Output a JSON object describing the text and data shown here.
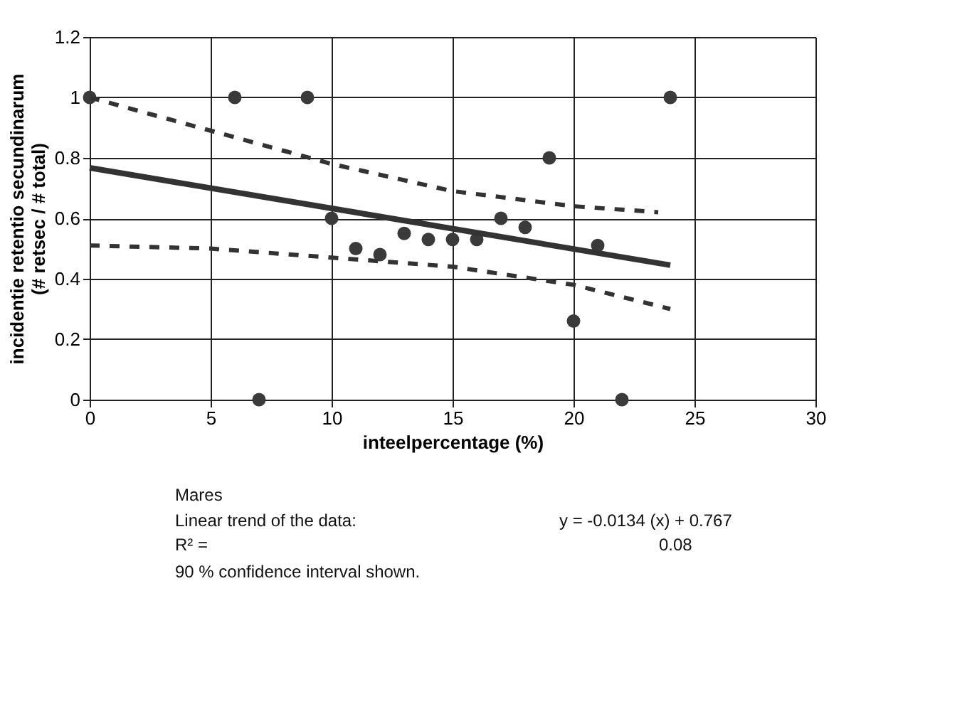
{
  "chart_data": {
    "type": "scatter",
    "xlabel": "inteelpercentage (%)",
    "ylabel": "incidentie retentio secundinarum\n(# retsec / # total)",
    "xlim": [
      0,
      30
    ],
    "xticks": [
      0,
      5,
      10,
      15,
      20,
      25,
      30
    ],
    "ylim": [
      0,
      1.2
    ],
    "yticks": [
      0,
      0.2,
      0.4,
      0.6,
      0.8,
      1,
      1.2
    ],
    "grid": true,
    "series": [
      {
        "marker": "circle",
        "color": "#3a3a3a",
        "x": [
          0,
          6,
          7,
          9,
          10,
          11,
          12,
          13,
          14,
          15,
          16,
          17,
          18,
          19,
          20,
          21,
          22,
          24
        ],
        "values": [
          1,
          1,
          0,
          1,
          0.6,
          0.5,
          0.48,
          0.55,
          0.53,
          0.53,
          0.53,
          0.6,
          0.57,
          0.8,
          0.26,
          0.51,
          0,
          1
        ]
      },
      {
        "type": "line",
        "color": "#333333",
        "line_style": "solid",
        "x": [
          0,
          24
        ],
        "values": [
          0.767,
          0.445
        ]
      },
      {
        "type": "line",
        "color": "#333333",
        "line_style": "dashed",
        "x": [
          0,
          5,
          10,
          15,
          20,
          23.5
        ],
        "values": [
          1.0,
          0.89,
          0.78,
          0.69,
          0.64,
          0.62
        ]
      },
      {
        "type": "line",
        "color": "#333333",
        "line_style": "dashed",
        "x": [
          0,
          5,
          10,
          15,
          20,
          24
        ],
        "values": [
          0.51,
          0.5,
          0.47,
          0.44,
          0.38,
          0.3
        ]
      }
    ],
    "annotations": [
      "Mares",
      "Linear trend of the data:",
      "y = -0.0134 (x) + 0.767",
      "R² =",
      "0.08",
      "90 % confidence interval shown."
    ]
  }
}
